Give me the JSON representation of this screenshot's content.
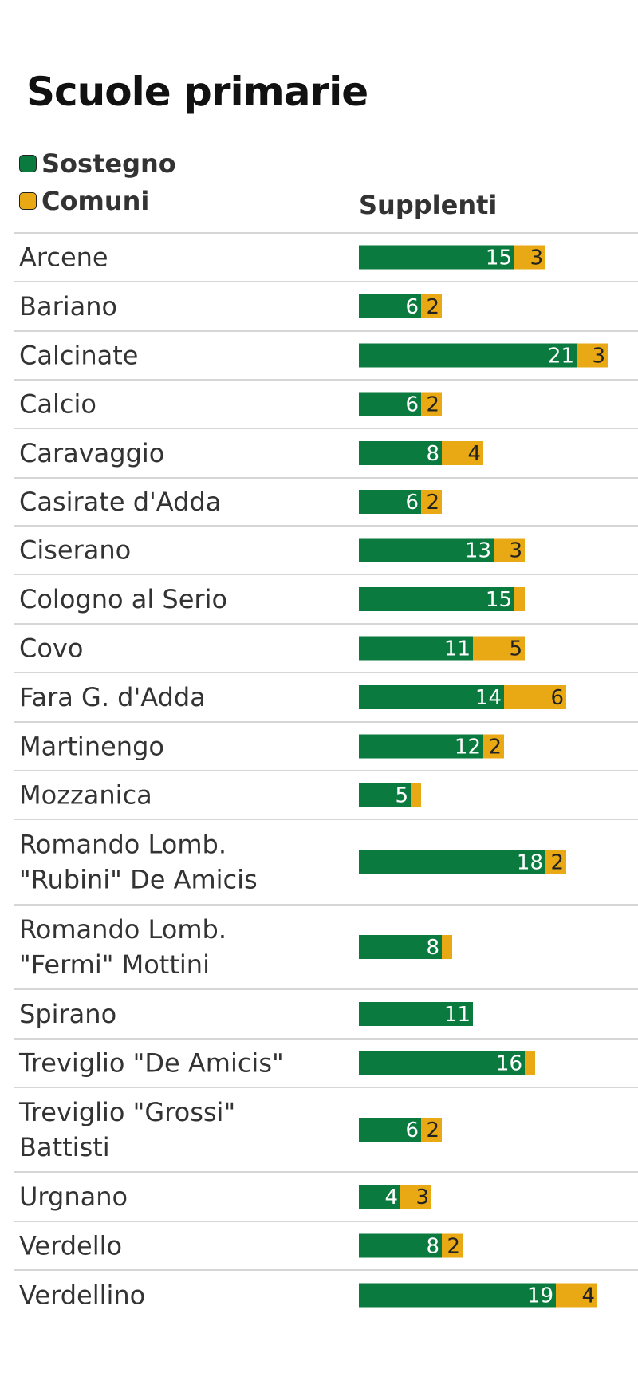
{
  "chart_data": {
    "type": "bar",
    "stacked": true,
    "orientation": "horizontal",
    "title": "Scuole primarie",
    "column_header": "Supplenti",
    "legend_placement": "top-left",
    "categories": [
      [
        "Arcene"
      ],
      [
        "Bariano"
      ],
      [
        "Calcinate"
      ],
      [
        "Calcio"
      ],
      [
        "Caravaggio"
      ],
      [
        "Casirate d'Adda"
      ],
      [
        "Ciserano"
      ],
      [
        "Cologno al Serio"
      ],
      [
        "Covo"
      ],
      [
        "Fara G. d'Adda"
      ],
      [
        "Martinengo"
      ],
      [
        "Mozzanica"
      ],
      [
        "Romando Lomb.",
        "\"Rubini\" De Amicis"
      ],
      [
        "Romando Lomb.",
        "\"Fermi\" Mottini"
      ],
      [
        "Spirano"
      ],
      [
        "Treviglio \"De Amicis\""
      ],
      [
        "Treviglio \"Grossi\"",
        "Battisti"
      ],
      [
        "Urgnano"
      ],
      [
        "Verdello"
      ],
      [
        "Verdellino"
      ]
    ],
    "series": [
      {
        "name": "Sostegno",
        "color": "#0a7a3e",
        "label_color": "#ffffff",
        "values": [
          15,
          6,
          21,
          6,
          8,
          6,
          13,
          15,
          11,
          14,
          12,
          5,
          18,
          8,
          11,
          16,
          6,
          4,
          8,
          19
        ],
        "labels": [
          "15",
          "6",
          "21",
          "6",
          "8",
          "6",
          "13",
          "15",
          "11",
          "14",
          "12",
          "5",
          "18",
          "8",
          "11",
          "16",
          "6",
          "4",
          "8",
          "19"
        ]
      },
      {
        "name": "Comuni",
        "color": "#e8a915",
        "label_color": "#222222",
        "values": [
          3,
          2,
          3,
          2,
          4,
          2,
          3,
          1,
          5,
          6,
          2,
          1,
          2,
          1,
          0,
          1,
          2,
          3,
          2,
          4
        ],
        "labels": [
          "3",
          "2",
          "3",
          "2",
          "4",
          "2",
          "3",
          "",
          "5",
          "6",
          "2",
          "",
          "2",
          "",
          "",
          "",
          "2",
          "3",
          "2",
          "4"
        ]
      }
    ],
    "grid": false
  }
}
